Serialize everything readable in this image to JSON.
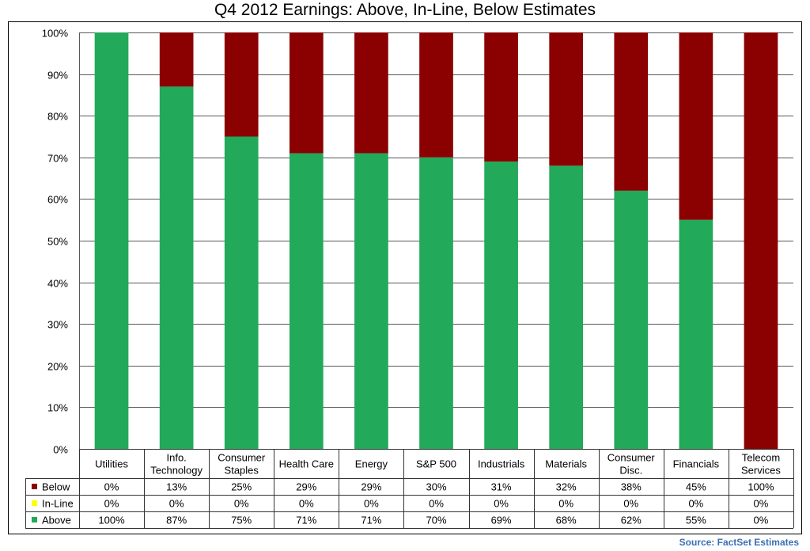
{
  "chart_data": {
    "type": "bar",
    "stacked": true,
    "title": "Q4 2012 Earnings: Above, In-Line, Below Estimates",
    "categories": [
      "Utilities",
      "Info. Technology",
      "Consumer Staples",
      "Health Care",
      "Energy",
      "S&P 500",
      "Industrials",
      "Materials",
      "Consumer Disc.",
      "Financials",
      "Telecom Services"
    ],
    "category_lines": [
      [
        "Utilities"
      ],
      [
        "Info.",
        "Technology"
      ],
      [
        "Consumer",
        "Staples"
      ],
      [
        "Health Care"
      ],
      [
        "Energy"
      ],
      [
        "S&P 500"
      ],
      [
        "Industrials"
      ],
      [
        "Materials"
      ],
      [
        "Consumer",
        "Disc."
      ],
      [
        "Financials"
      ],
      [
        "Telecom",
        "Services"
      ]
    ],
    "ylim": [
      0,
      100
    ],
    "yticks": [
      "0%",
      "10%",
      "20%",
      "30%",
      "40%",
      "50%",
      "60%",
      "70%",
      "80%",
      "90%",
      "100%"
    ],
    "grid": true,
    "legend": "table-bottom",
    "series": [
      {
        "name": "Below",
        "color": "#8b0000",
        "values": [
          0,
          13,
          25,
          29,
          29,
          30,
          31,
          32,
          38,
          45,
          100
        ],
        "labels": [
          "0%",
          "13%",
          "25%",
          "29%",
          "29%",
          "30%",
          "31%",
          "32%",
          "38%",
          "45%",
          "100%"
        ]
      },
      {
        "name": "In-Line",
        "color": "#ffff00",
        "values": [
          0,
          0,
          0,
          0,
          0,
          0,
          0,
          0,
          0,
          0,
          0
        ],
        "labels": [
          "0%",
          "0%",
          "0%",
          "0%",
          "0%",
          "0%",
          "0%",
          "0%",
          "0%",
          "0%",
          "0%"
        ]
      },
      {
        "name": "Above",
        "color": "#22a95a",
        "values": [
          100,
          87,
          75,
          71,
          71,
          70,
          69,
          68,
          62,
          55,
          0
        ],
        "labels": [
          "100%",
          "87%",
          "75%",
          "71%",
          "71%",
          "70%",
          "69%",
          "68%",
          "62%",
          "55%",
          "0%"
        ]
      }
    ]
  },
  "source": "Source: FactSet Estimates"
}
